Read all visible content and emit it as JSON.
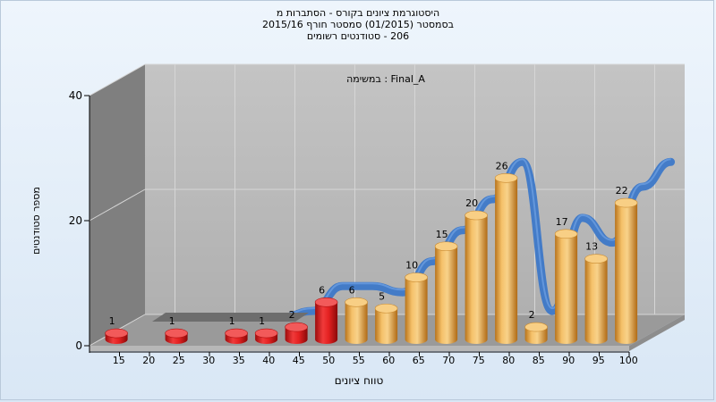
{
  "chart_data": {
    "type": "bar",
    "title_lines": [
      "היסטוגרמת ציונים בקורס - הסתברות מ",
      "בסמסטר  (01/2015)  סמסטר חורף  2015/16",
      "206 - סטודנטים רשומים"
    ],
    "subtitle": "Final_A : במשימה",
    "xlabel": "טווח ציונים",
    "ylabel": "מספר סטודנטים",
    "ylim": [
      0,
      40
    ],
    "yticks": [
      0,
      20,
      40
    ],
    "categories": [
      "15",
      "20",
      "25",
      "30",
      "35",
      "40",
      "45",
      "50",
      "55",
      "60",
      "65",
      "70",
      "75",
      "80",
      "85",
      "90",
      "95",
      "100"
    ],
    "values": [
      1,
      0,
      1,
      0,
      1,
      1,
      2,
      6,
      6,
      5,
      10,
      15,
      20,
      26,
      2,
      17,
      13,
      22
    ],
    "colors": {
      "failing": "#e01b1b",
      "passing": "#f0a845",
      "trend": "#3d78c8",
      "wall": "#b9b9b9",
      "side_wall": "#7f7f7f",
      "floor": "#9a9a9a"
    },
    "grid": true,
    "legend": "none"
  }
}
